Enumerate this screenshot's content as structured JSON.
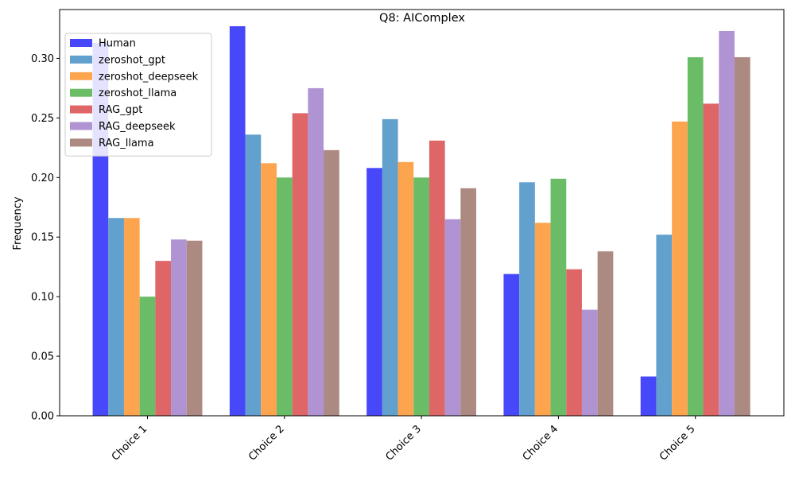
{
  "chart_data": {
    "type": "bar",
    "title": "Q8: AIComplex",
    "xlabel": "",
    "ylabel": "Frequency",
    "ylim": [
      0,
      0.341
    ],
    "yticks": [
      0.0,
      0.05,
      0.1,
      0.15,
      0.2,
      0.25,
      0.3
    ],
    "ytick_labels": [
      "0.00",
      "0.05",
      "0.10",
      "0.15",
      "0.20",
      "0.25",
      "0.30"
    ],
    "categories": [
      "Choice 1",
      "Choice 2",
      "Choice 3",
      "Choice 4",
      "Choice 5"
    ],
    "legend_position": "top-left",
    "grid": false,
    "series": [
      {
        "name": "Human",
        "color": "#4848fb",
        "values": [
          0.313,
          0.327,
          0.208,
          0.119,
          0.033
        ]
      },
      {
        "name": "zeroshot_gpt",
        "color": "#62a0ce",
        "values": [
          0.166,
          0.236,
          0.249,
          0.196,
          0.152
        ]
      },
      {
        "name": "zeroshot_deepseek",
        "color": "#fda44f",
        "values": [
          0.166,
          0.212,
          0.213,
          0.162,
          0.247
        ]
      },
      {
        "name": "zeroshot_llama",
        "color": "#6bbc67",
        "values": [
          0.1,
          0.2,
          0.2,
          0.199,
          0.301
        ]
      },
      {
        "name": "RAG_gpt",
        "color": "#df6666",
        "values": [
          0.13,
          0.254,
          0.231,
          0.123,
          0.262
        ]
      },
      {
        "name": "RAG_deepseek",
        "color": "#b093d2",
        "values": [
          0.148,
          0.275,
          0.165,
          0.089,
          0.323
        ]
      },
      {
        "name": "RAG_llama",
        "color": "#ad8a81",
        "values": [
          0.147,
          0.223,
          0.191,
          0.138,
          0.301
        ]
      }
    ]
  }
}
